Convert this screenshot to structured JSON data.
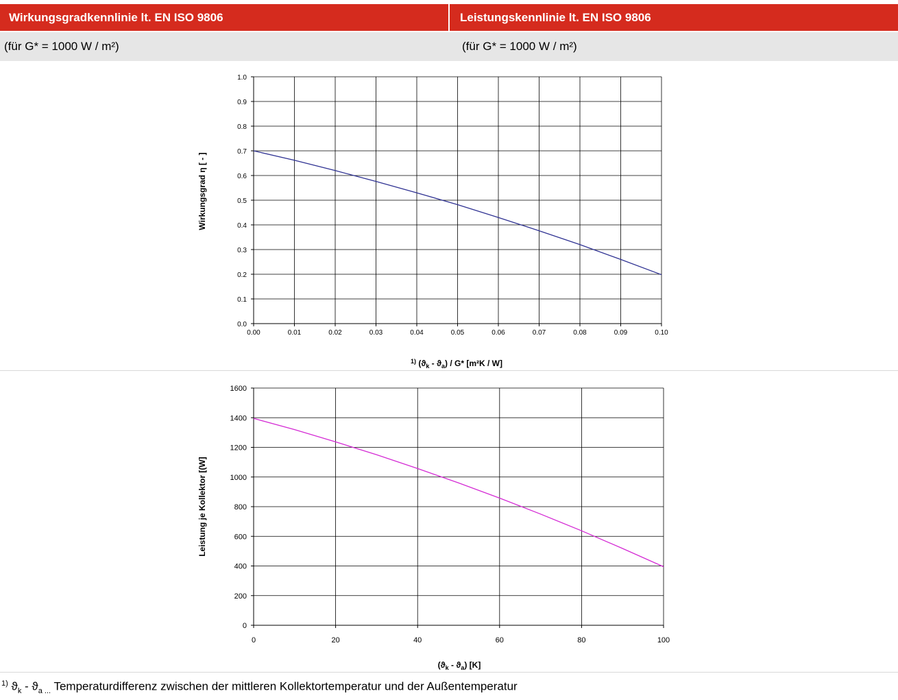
{
  "header": {
    "left_title": "Wirkungsgradkennlinie lt. EN ISO 9806",
    "right_title": "Leistungskennlinie lt. EN ISO 9806",
    "left_condition": "(für G* = 1000 W / m²)",
    "right_condition": "(für G* = 1000 W / m²)"
  },
  "chart_data": [
    {
      "type": "line",
      "title": "",
      "xlabel": "(ϑk - ϑa) / G* [m²K / W]",
      "xlabel_parts": {
        "prefix": "1)",
        "theta": "ϑ",
        "k": "k",
        "minus": " - ",
        "a": "a",
        "rest": ") / G* [m²K / W]"
      },
      "ylabel": "Wirkungsgrad η [ - ]",
      "xlim": [
        0,
        0.1
      ],
      "ylim": [
        0,
        1
      ],
      "x_ticks": [
        "0.00",
        "0.01",
        "0.02",
        "0.03",
        "0.04",
        "0.05",
        "0.06",
        "0.07",
        "0.08",
        "0.09",
        "0.10"
      ],
      "y_ticks": [
        "0.0",
        "0.1",
        "0.2",
        "0.3",
        "0.4",
        "0.5",
        "0.6",
        "0.7",
        "0.8",
        "0.9",
        "1.0"
      ],
      "grid": true,
      "line_color": "#2e3192",
      "series": [
        {
          "x": [
            0,
            0.01,
            0.02,
            0.03,
            0.04,
            0.05,
            0.06,
            0.07,
            0.08,
            0.09,
            0.1
          ],
          "y": [
            0.7,
            0.662,
            0.62,
            0.576,
            0.53,
            0.482,
            0.43,
            0.376,
            0.32,
            0.26,
            0.198
          ]
        }
      ]
    },
    {
      "type": "line",
      "title": "",
      "xlabel": "(ϑk - ϑa) [K]",
      "xlabel_parts": {
        "open": "(",
        "theta": "ϑ",
        "k": "k",
        "minus": " - ",
        "a": "a",
        "rest": ") [K]"
      },
      "ylabel": "Leistung je Kollektor [(W]",
      "xlim": [
        0,
        100
      ],
      "ylim": [
        0,
        1600
      ],
      "x_ticks": [
        "0",
        "20",
        "40",
        "60",
        "80",
        "100"
      ],
      "y_ticks": [
        "0",
        "200",
        "400",
        "600",
        "800",
        "1000",
        "1200",
        "1400",
        "1600"
      ],
      "grid": true,
      "line_color": "#d42ad4",
      "series": [
        {
          "x": [
            0,
            10,
            20,
            30,
            40,
            50,
            60,
            70,
            80,
            90,
            100
          ],
          "y": [
            1395,
            1320,
            1237,
            1150,
            1057,
            960,
            858,
            750,
            637,
            518,
            395
          ]
        }
      ]
    }
  ],
  "footnote": {
    "marker": "1)",
    "theta": "ϑ",
    "k": "k",
    "minus": " - ",
    "a": "a ...",
    "text": " Temperaturdifferenz zwischen der mittleren Kollektortemperatur und der Außentemperatur"
  }
}
